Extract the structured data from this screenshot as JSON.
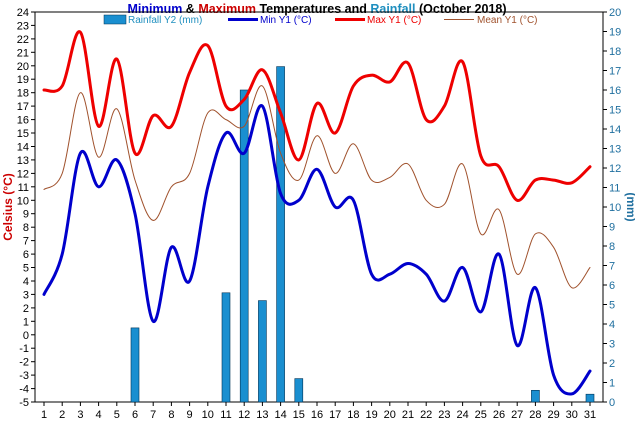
{
  "title": {
    "parts": [
      {
        "text": "Minimum",
        "color": "#0000cc"
      },
      {
        "text": " & ",
        "color": "#000000"
      },
      {
        "text": "Maximum",
        "color": "#cc0000"
      },
      {
        "text": " Temperatures and ",
        "color": "#000000"
      },
      {
        "text": "Rainfall",
        "color": "#1f8fbf"
      },
      {
        "text": " (October 2018)",
        "color": "#000000"
      }
    ]
  },
  "legend": [
    {
      "label": "Rainfall Y2 (mm)",
      "kind": "bar",
      "color": "#1a8fd0"
    },
    {
      "label": "Min Y1 (°C)",
      "kind": "line",
      "color": "#0000cc"
    },
    {
      "label": "Max Y1 (°C)",
      "kind": "line",
      "color": "#ee0000"
    },
    {
      "label": "Mean Y1 (°C)",
      "kind": "line",
      "color": "#a0522d"
    }
  ],
  "colors": {
    "rain": "#1a8fd0",
    "rain_stroke": "#003355",
    "min": "#0000cc",
    "max": "#ee0000",
    "mean": "#a0522d",
    "left_axis_title": "#cc0000",
    "right_axis_title": "#1f6f9f",
    "right_ticks": "#1f6f9f",
    "left_ticks": "#000000"
  },
  "chart_data": {
    "type": "line",
    "x": [
      1,
      2,
      3,
      4,
      5,
      6,
      7,
      8,
      9,
      10,
      11,
      12,
      13,
      14,
      15,
      16,
      17,
      18,
      19,
      20,
      21,
      22,
      23,
      24,
      25,
      26,
      27,
      28,
      29,
      30,
      31
    ],
    "x_tick_labels": [
      "1",
      "2",
      "3",
      "4",
      "5",
      "6",
      "7",
      "8",
      "9",
      "10",
      "11",
      "12",
      "13",
      "14",
      "15",
      "16",
      "17",
      "18",
      "19",
      "20",
      "21",
      "22",
      "23",
      "24",
      "25",
      "26",
      "27",
      "28",
      "29",
      "30",
      "31"
    ],
    "ylabel": "Celsius (°C)",
    "ylim": [
      -5,
      24
    ],
    "y_ticks": [
      -5,
      -4,
      -3,
      -2,
      -1,
      0,
      1,
      2,
      3,
      4,
      5,
      6,
      7,
      8,
      9,
      10,
      11,
      12,
      13,
      14,
      15,
      16,
      17,
      18,
      19,
      20,
      21,
      22,
      23,
      24
    ],
    "y2label": "(mm)",
    "y2lim": [
      0,
      20
    ],
    "y2_ticks": [
      0,
      1,
      2,
      3,
      4,
      5,
      6,
      7,
      8,
      9,
      10,
      11,
      12,
      13,
      14,
      15,
      16,
      17,
      18,
      19,
      20
    ],
    "grid": false,
    "legend_position": "top",
    "series": [
      {
        "name": "Rainfall Y2 (mm)",
        "type": "bar",
        "axis": "y2",
        "values": [
          0,
          0,
          0,
          0,
          0,
          3.8,
          0,
          0,
          0,
          0,
          5.6,
          16,
          5.2,
          17.2,
          1.2,
          0,
          0,
          0,
          0,
          0,
          0,
          0,
          0,
          0,
          0,
          0,
          0,
          0.6,
          0,
          0,
          0.4
        ]
      },
      {
        "name": "Min Y1 (°C)",
        "type": "line",
        "axis": "y1",
        "values": [
          3,
          6,
          13.5,
          11,
          13,
          9,
          1,
          6.5,
          4,
          11,
          15,
          13.5,
          17,
          10.5,
          10,
          12.3,
          9.5,
          10,
          4.5,
          4.5,
          5.3,
          4.5,
          2.5,
          5,
          1.7,
          6,
          -0.8,
          3.5,
          -3,
          -4.4,
          -2.7
        ]
      },
      {
        "name": "Max Y1 (°C)",
        "type": "line",
        "axis": "y1",
        "values": [
          18.2,
          18.5,
          22.5,
          15.5,
          20.5,
          13.5,
          16.3,
          15.5,
          19.5,
          21.5,
          17,
          17.5,
          19.7,
          16.5,
          13,
          17.2,
          15,
          18.5,
          19.3,
          18.8,
          20.2,
          16,
          17,
          20.3,
          13.3,
          12.5,
          10,
          11.5,
          11.5,
          11.3,
          12.5
        ]
      },
      {
        "name": "Mean Y1 (°C)",
        "type": "line",
        "axis": "y1",
        "values": [
          10.8,
          12,
          18,
          13.2,
          16.8,
          11.5,
          8.5,
          11,
          12,
          16.5,
          16,
          15.5,
          18.5,
          13.5,
          11.5,
          14.8,
          12,
          14.2,
          11.5,
          11.7,
          12.7,
          10,
          9.7,
          12.7,
          7.5,
          9.3,
          4.5,
          7.5,
          6.5,
          3.5,
          5
        ]
      }
    ]
  }
}
